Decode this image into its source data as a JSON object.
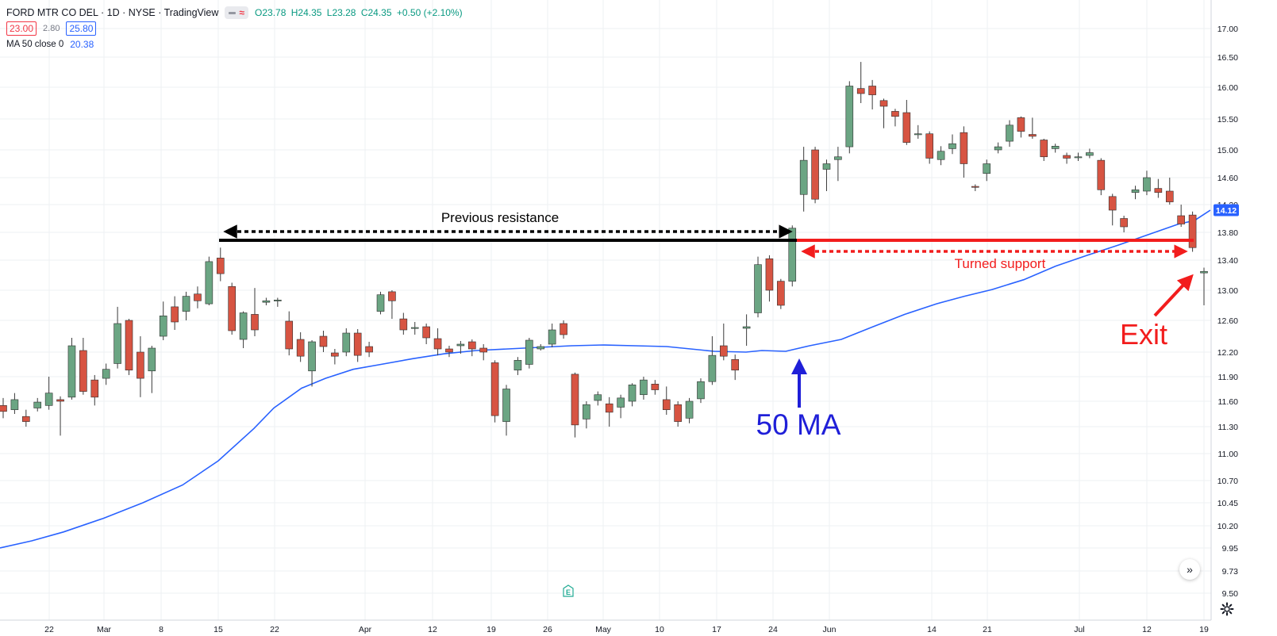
{
  "header": {
    "title": "FORD MTR CO DEL · 1D · NYSE · TradingView",
    "ohlc": {
      "open": "O23.78",
      "high": "H24.35",
      "low": "L23.28",
      "close": "C24.35",
      "change": "+0.50 (+2.10%)"
    },
    "bid": "23.00",
    "spread": "2.80",
    "ask": "25.80",
    "ma_label": "MA 50 close 0",
    "ma_value": "20.38"
  },
  "icons": {
    "compare": "dash-icon",
    "wave": "wave-icon",
    "scroll": "chevron-right-double-icon",
    "earnings": "earnings-e-icon",
    "settings": "gear-icon"
  },
  "colors": {
    "up": "#6ba583",
    "down": "#d75442",
    "ma": "#2962ff",
    "annotation_red": "#f21d1d",
    "annotation_blue": "#1f1fd8"
  },
  "chart_data": {
    "type": "candlestick",
    "y_ticks": [
      "17.00",
      "16.50",
      "16.00",
      "15.50",
      "15.00",
      "14.60",
      "14.20",
      "13.80",
      "13.40",
      "13.00",
      "12.60",
      "12.20",
      "11.90",
      "11.60",
      "11.30",
      "11.00",
      "10.70",
      "10.45",
      "10.20",
      "9.95",
      "9.73",
      "9.50"
    ],
    "x_ticks": [
      "22",
      "Mar",
      "8",
      "15",
      "22",
      "Apr",
      "12",
      "19",
      "26",
      "May",
      "10",
      "17",
      "24",
      "Jun",
      "14",
      "21",
      "Jul",
      "12",
      "19"
    ],
    "last_price_label": "14.12",
    "candles": [
      [
        11.55,
        11.48,
        11.64,
        11.4
      ],
      [
        11.5,
        11.62,
        11.7,
        11.45
      ],
      [
        11.42,
        11.36,
        11.5,
        11.3
      ],
      [
        11.52,
        11.59,
        11.64,
        11.48
      ],
      [
        11.55,
        11.7,
        11.9,
        11.5
      ],
      [
        11.62,
        11.6,
        11.66,
        11.2
      ],
      [
        11.65,
        12.28,
        12.38,
        11.62
      ],
      [
        12.22,
        11.72,
        12.38,
        11.68
      ],
      [
        11.86,
        11.65,
        11.92,
        11.55
      ],
      [
        11.88,
        11.99,
        12.06,
        11.8
      ],
      [
        12.06,
        12.56,
        12.78,
        12.0
      ],
      [
        12.6,
        11.98,
        12.62,
        11.92
      ],
      [
        12.2,
        11.88,
        12.4,
        11.65
      ],
      [
        11.97,
        12.25,
        12.28,
        11.7
      ],
      [
        12.4,
        12.66,
        12.85,
        12.35
      ],
      [
        12.78,
        12.58,
        12.92,
        12.48
      ],
      [
        12.72,
        12.92,
        12.98,
        12.6
      ],
      [
        12.95,
        12.86,
        13.05,
        12.76
      ],
      [
        12.82,
        13.38,
        13.45,
        12.8
      ],
      [
        13.43,
        13.22,
        13.58,
        13.12
      ],
      [
        13.05,
        12.47,
        13.1,
        12.42
      ],
      [
        12.36,
        12.7,
        12.72,
        12.25
      ],
      [
        12.68,
        12.48,
        13.03,
        12.4
      ],
      [
        12.84,
        12.86,
        12.9,
        12.8
      ],
      [
        12.86,
        12.87,
        12.9,
        12.78
      ],
      [
        12.59,
        12.24,
        12.72,
        12.16
      ],
      [
        12.36,
        12.15,
        12.45,
        12.08
      ],
      [
        11.97,
        12.33,
        12.35,
        11.78
      ],
      [
        12.4,
        12.27,
        12.47,
        12.2
      ],
      [
        12.19,
        12.15,
        12.24,
        12.05
      ],
      [
        12.2,
        12.44,
        12.5,
        12.15
      ],
      [
        12.44,
        12.16,
        12.49,
        12.08
      ],
      [
        12.27,
        12.2,
        12.33,
        12.14
      ],
      [
        12.72,
        12.94,
        12.98,
        12.68
      ],
      [
        12.98,
        12.86,
        13.0,
        12.62
      ],
      [
        12.62,
        12.48,
        12.7,
        12.42
      ],
      [
        12.5,
        12.51,
        12.58,
        12.42
      ],
      [
        12.52,
        12.38,
        12.56,
        12.3
      ],
      [
        12.37,
        12.24,
        12.5,
        12.16
      ],
      [
        12.24,
        12.2,
        12.28,
        12.14
      ],
      [
        12.28,
        12.3,
        12.34,
        12.18
      ],
      [
        12.33,
        12.24,
        12.36,
        12.15
      ],
      [
        12.25,
        12.2,
        12.3,
        12.1
      ],
      [
        12.07,
        11.43,
        12.1,
        11.35
      ],
      [
        11.36,
        11.75,
        11.8,
        11.2
      ],
      [
        11.98,
        12.1,
        12.14,
        11.92
      ],
      [
        12.05,
        12.35,
        12.38,
        12.0
      ],
      [
        12.24,
        12.27,
        12.3,
        12.22
      ],
      [
        12.3,
        12.48,
        12.56,
        12.26
      ],
      [
        12.56,
        12.42,
        12.6,
        12.37
      ],
      [
        11.93,
        11.32,
        11.95,
        11.18
      ],
      [
        11.39,
        11.56,
        11.6,
        11.28
      ],
      [
        11.61,
        11.68,
        11.72,
        11.55
      ],
      [
        11.57,
        11.47,
        11.65,
        11.3
      ],
      [
        11.53,
        11.64,
        11.68,
        11.4
      ],
      [
        11.6,
        11.8,
        11.82,
        11.54
      ],
      [
        11.68,
        11.86,
        11.9,
        11.62
      ],
      [
        11.81,
        11.74,
        11.86,
        11.68
      ],
      [
        11.62,
        11.5,
        11.78,
        11.44
      ],
      [
        11.56,
        11.36,
        11.6,
        11.3
      ],
      [
        11.4,
        11.6,
        11.64,
        11.34
      ],
      [
        11.63,
        11.84,
        11.88,
        11.58
      ],
      [
        11.84,
        12.16,
        12.4,
        11.8
      ],
      [
        12.28,
        12.15,
        12.56,
        12.1
      ],
      [
        12.11,
        11.98,
        12.17,
        11.86
      ],
      [
        12.5,
        12.52,
        12.68,
        12.28
      ],
      [
        12.7,
        13.34,
        13.45,
        12.64
      ],
      [
        13.42,
        13.0,
        13.47,
        12.85
      ],
      [
        13.12,
        12.8,
        13.15,
        12.75
      ],
      [
        13.12,
        13.86,
        13.9,
        13.05
      ],
      [
        14.35,
        14.85,
        15.05,
        14.1
      ],
      [
        15.0,
        14.28,
        15.05,
        14.22
      ],
      [
        14.72,
        14.8,
        14.86,
        14.4
      ],
      [
        14.86,
        14.9,
        15.05,
        14.55
      ],
      [
        15.05,
        16.02,
        16.1,
        14.95
      ],
      [
        15.98,
        15.9,
        16.42,
        15.75
      ],
      [
        16.02,
        15.88,
        16.12,
        15.65
      ],
      [
        15.79,
        15.7,
        15.82,
        15.35
      ],
      [
        15.62,
        15.54,
        15.66,
        15.38
      ],
      [
        15.6,
        15.12,
        15.8,
        15.08
      ],
      [
        15.25,
        15.26,
        15.4,
        15.18
      ],
      [
        15.26,
        14.88,
        15.3,
        14.8
      ],
      [
        14.86,
        14.98,
        15.06,
        14.78
      ],
      [
        15.02,
        15.1,
        15.25,
        14.94
      ],
      [
        15.28,
        14.8,
        15.38,
        14.6
      ],
      [
        14.47,
        14.46,
        14.5,
        14.4
      ],
      [
        14.66,
        14.8,
        14.86,
        14.55
      ],
      [
        15.0,
        15.05,
        15.12,
        14.95
      ],
      [
        15.14,
        15.4,
        15.48,
        15.05
      ],
      [
        15.52,
        15.3,
        15.54,
        15.2
      ],
      [
        15.25,
        15.22,
        15.52,
        15.18
      ],
      [
        15.16,
        14.9,
        15.18,
        14.84
      ],
      [
        15.02,
        15.06,
        15.1,
        14.96
      ],
      [
        14.92,
        14.88,
        14.96,
        14.8
      ],
      [
        14.89,
        14.9,
        14.96,
        14.84
      ],
      [
        14.92,
        14.96,
        15.02,
        14.88
      ],
      [
        14.85,
        14.42,
        14.88,
        14.34
      ],
      [
        14.32,
        14.12,
        14.36,
        13.9
      ],
      [
        14.0,
        13.88,
        14.04,
        13.8
      ],
      [
        14.38,
        14.42,
        14.48,
        14.28
      ],
      [
        14.4,
        14.6,
        14.7,
        14.34
      ],
      [
        14.44,
        14.38,
        14.58,
        14.3
      ],
      [
        14.4,
        14.24,
        14.6,
        14.2
      ],
      [
        14.04,
        13.92,
        14.2,
        13.88
      ],
      [
        14.05,
        13.58,
        14.1,
        13.52
      ],
      [
        13.23,
        13.25,
        13.3,
        12.8
      ]
    ],
    "ma50": [
      [
        0,
        9.95
      ],
      [
        40,
        10.03
      ],
      [
        80,
        10.13
      ],
      [
        130,
        10.28
      ],
      [
        180,
        10.45
      ],
      [
        230,
        10.65
      ],
      [
        275,
        10.92
      ],
      [
        320,
        11.28
      ],
      [
        345,
        11.52
      ],
      [
        380,
        11.76
      ],
      [
        410,
        11.88
      ],
      [
        445,
        11.99
      ],
      [
        480,
        12.05
      ],
      [
        520,
        12.12
      ],
      [
        560,
        12.18
      ],
      [
        600,
        12.22
      ],
      [
        640,
        12.24
      ],
      [
        680,
        12.26
      ],
      [
        720,
        12.28
      ],
      [
        760,
        12.29
      ],
      [
        800,
        12.28
      ],
      [
        840,
        12.27
      ],
      [
        870,
        12.24
      ],
      [
        900,
        12.21
      ],
      [
        940,
        12.2
      ],
      [
        960,
        12.22
      ],
      [
        990,
        12.21
      ],
      [
        1020,
        12.28
      ],
      [
        1060,
        12.36
      ],
      [
        1100,
        12.52
      ],
      [
        1140,
        12.68
      ],
      [
        1180,
        12.82
      ],
      [
        1215,
        12.92
      ],
      [
        1250,
        13.01
      ],
      [
        1290,
        13.14
      ],
      [
        1330,
        13.32
      ],
      [
        1370,
        13.47
      ],
      [
        1410,
        13.62
      ],
      [
        1450,
        13.78
      ],
      [
        1485,
        13.92
      ],
      [
        1505,
        13.97
      ],
      [
        1525,
        14.12
      ]
    ]
  },
  "annotations": {
    "previous_resistance": "Previous resistance",
    "turned_support": "Turned support",
    "ma_label": "50 MA",
    "exit": "Exit"
  }
}
